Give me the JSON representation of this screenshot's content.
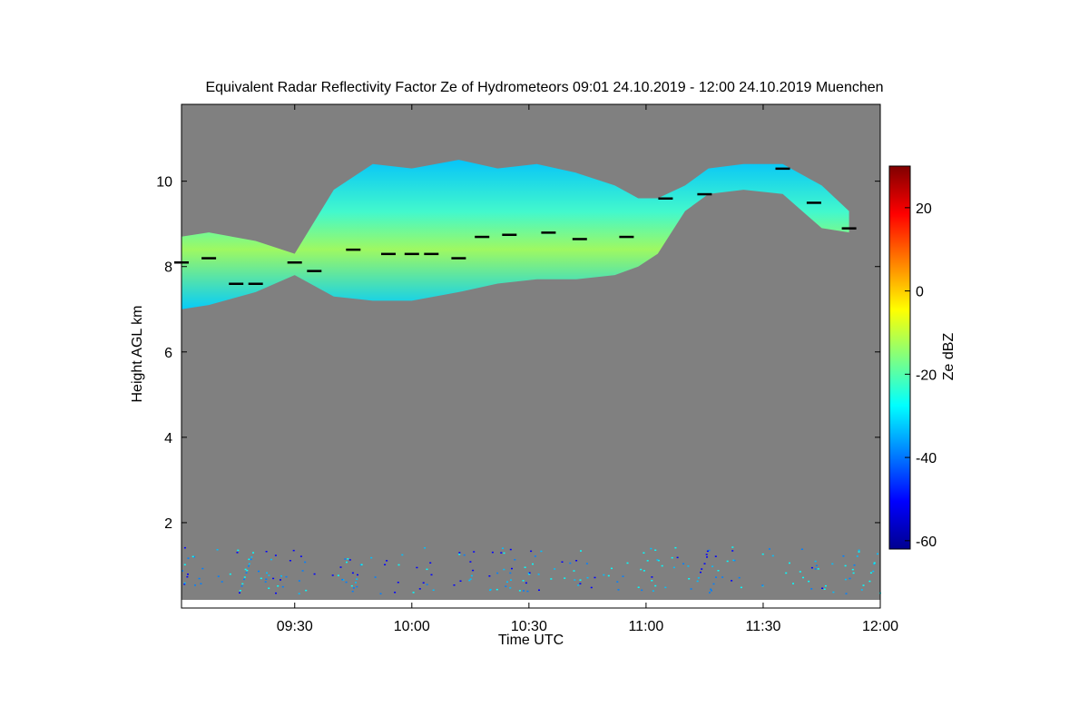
{
  "chart_data": {
    "type": "heatmap",
    "title": "Equivalent Radar Reflectivity Factor Ze of Hydrometeors   09:01 24.10.2019 - 12:00 24.10.2019 Muenchen",
    "xlabel": "Time UTC",
    "ylabel": "Height AGL km",
    "colorbar_label": "Ze dBZ",
    "x_ticks": [
      "09:30",
      "10:00",
      "10:30",
      "11:00",
      "11:30",
      "12:00"
    ],
    "x_tick_minutes": [
      570,
      600,
      630,
      660,
      690,
      720
    ],
    "xlim_minutes": [
      541,
      720
    ],
    "y_ticks": [
      2,
      4,
      6,
      8,
      10
    ],
    "ylim": [
      0,
      11.8
    ],
    "colorbar_ticks": [
      -60,
      -40,
      -20,
      0,
      20
    ],
    "colorbar_range": [
      -62,
      30
    ],
    "background_color": "#808080",
    "colormap": [
      "#00008f",
      "#0000ff",
      "#0080ff",
      "#00ffff",
      "#80ff80",
      "#ffff00",
      "#ff8000",
      "#ff0000",
      "#800000"
    ],
    "cloud_layer": {
      "description_values": "upper cloud echo",
      "time_minutes": [
        541,
        548,
        560,
        570,
        580,
        590,
        600,
        612,
        622,
        632,
        642,
        652,
        658,
        663,
        670,
        676,
        685,
        695,
        705,
        712
      ],
      "base_km": [
        7.0,
        7.1,
        7.4,
        7.8,
        7.3,
        7.2,
        7.2,
        7.4,
        7.6,
        7.7,
        7.7,
        7.8,
        8.0,
        8.3,
        9.3,
        9.7,
        9.8,
        9.7,
        8.9,
        8.8
      ],
      "top_km": [
        8.7,
        8.8,
        8.6,
        8.3,
        9.8,
        10.4,
        10.3,
        10.5,
        10.3,
        10.4,
        10.2,
        9.9,
        9.6,
        9.6,
        9.9,
        10.3,
        10.4,
        10.4,
        9.9,
        9.3
      ]
    },
    "melting_line": {
      "time_minutes": [
        541,
        548,
        555,
        560,
        570,
        575,
        585,
        594,
        600,
        605,
        612,
        618,
        625,
        635,
        643,
        655,
        665,
        675,
        695,
        703,
        712
      ],
      "height_km": [
        8.1,
        8.2,
        7.6,
        7.6,
        8.1,
        7.9,
        8.4,
        8.3,
        8.3,
        8.3,
        8.2,
        8.7,
        8.75,
        8.8,
        8.65,
        8.7,
        9.6,
        9.7,
        10.3,
        9.5,
        8.9
      ]
    }
  }
}
